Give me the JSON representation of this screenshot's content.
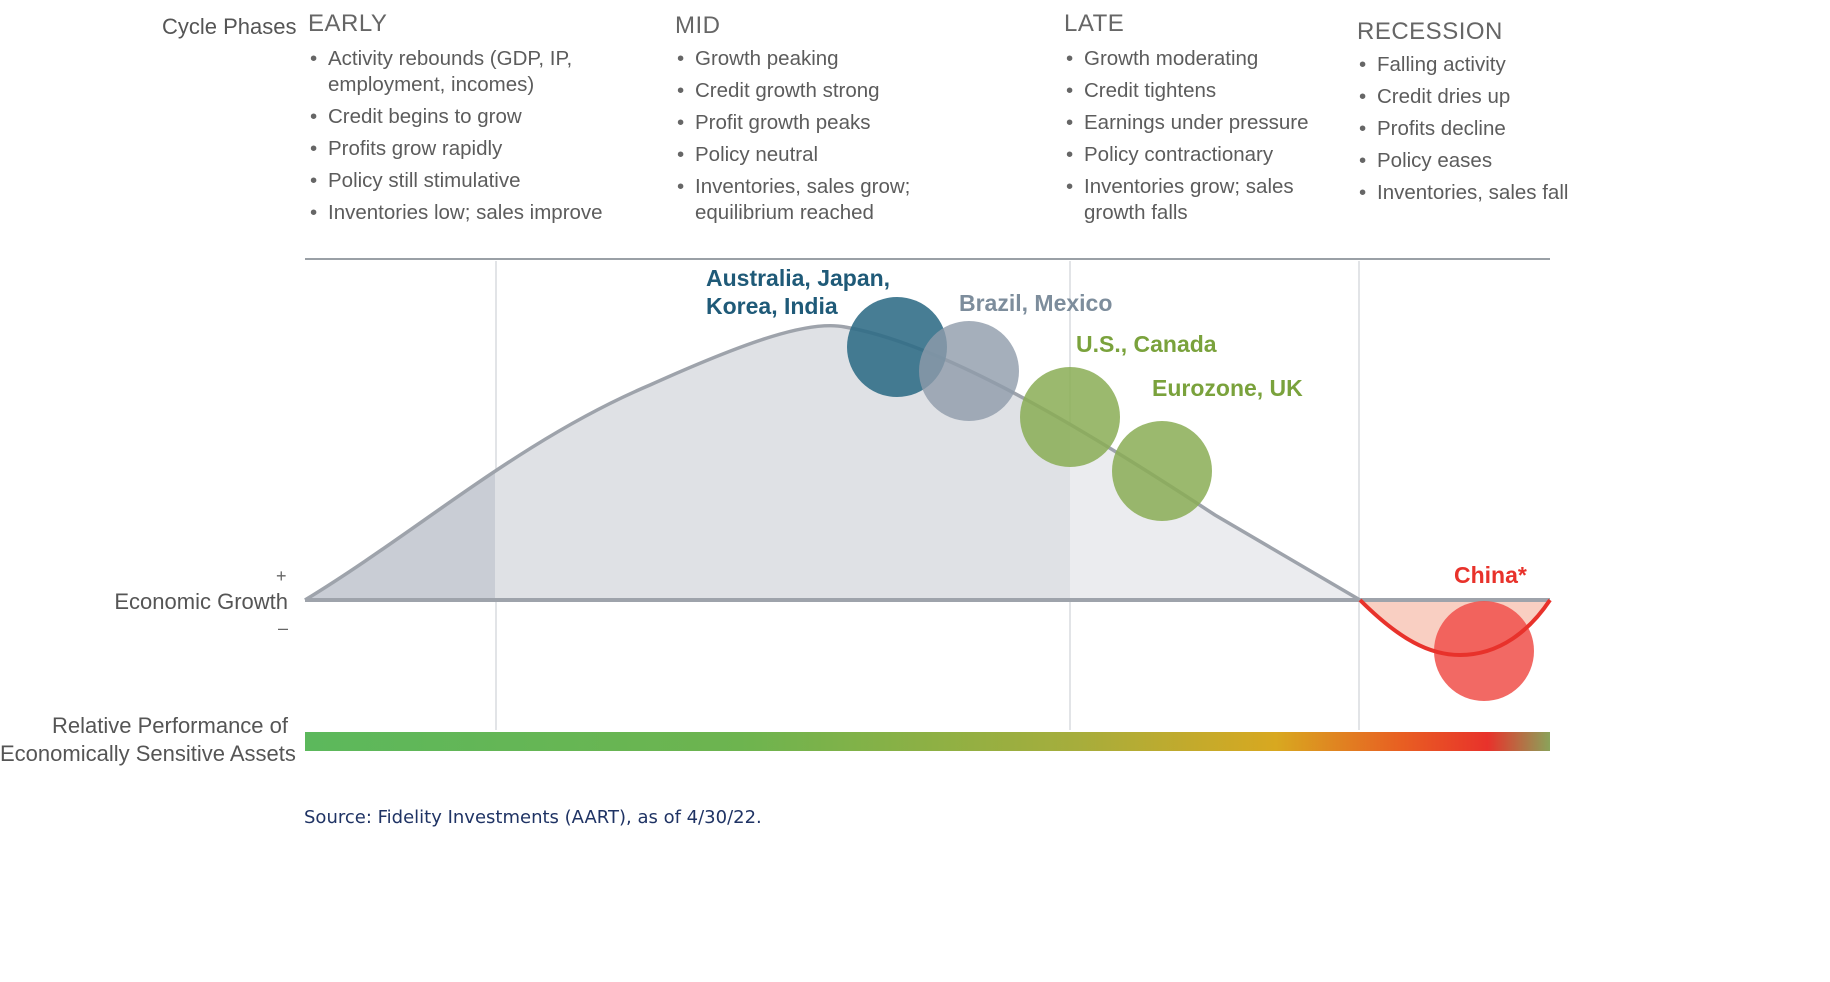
{
  "header_label": "Cycle Phases",
  "phases": [
    {
      "title": "EARLY",
      "bullets": [
        "Activity rebounds (GDP, IP, employment, incomes)",
        "Credit begins to grow",
        "Profits grow rapidly",
        "Policy still stimulative",
        "Inventories low; sales improve"
      ]
    },
    {
      "title": "MID",
      "bullets": [
        "Growth peaking",
        "Credit growth strong",
        "Profit growth peaks",
        "Policy neutral",
        "Inventories, sales grow; equilibrium reached"
      ]
    },
    {
      "title": "LATE",
      "bullets": [
        "Growth moderating",
        "Credit tightens",
        "Earnings under pressure",
        "Policy contractionary",
        "Inventories grow; sales growth falls"
      ]
    },
    {
      "title": "RECESSION",
      "bullets": [
        "Falling activity",
        "Credit dries up",
        "Profits decline",
        "Policy eases",
        "Inventories, sales fall"
      ]
    }
  ],
  "axis": {
    "plus": "+",
    "label": "Economic Growth",
    "minus": "–"
  },
  "regions": [
    {
      "label": "Australia, Japan,\nKorea, India",
      "phase": "mid",
      "color": "#2e6b85",
      "fill": "#2e6b85"
    },
    {
      "label": "Brazil, Mexico",
      "phase": "mid/late",
      "color": "#7d8d9c",
      "fill": "#8e9baa"
    },
    {
      "label": "U.S., Canada",
      "phase": "late",
      "color": "#7aa23c",
      "fill": "#8aad55"
    },
    {
      "label": "Eurozone, UK",
      "phase": "late",
      "color": "#7aa23c",
      "fill": "#8aad55"
    },
    {
      "label": "China*",
      "phase": "recession",
      "color": "#e8322b",
      "fill": "#f0544e"
    }
  ],
  "performance_label": {
    "line1": "Relative Performance of",
    "line2": "Economically Sensitive Assets"
  },
  "gradient_colors": [
    "#5cb85c",
    "#7fb04a",
    "#d6a91f",
    "#e8322b",
    "#8aa35a"
  ],
  "source": "Source: Fidelity Investments (AART), as of 4/30/22."
}
